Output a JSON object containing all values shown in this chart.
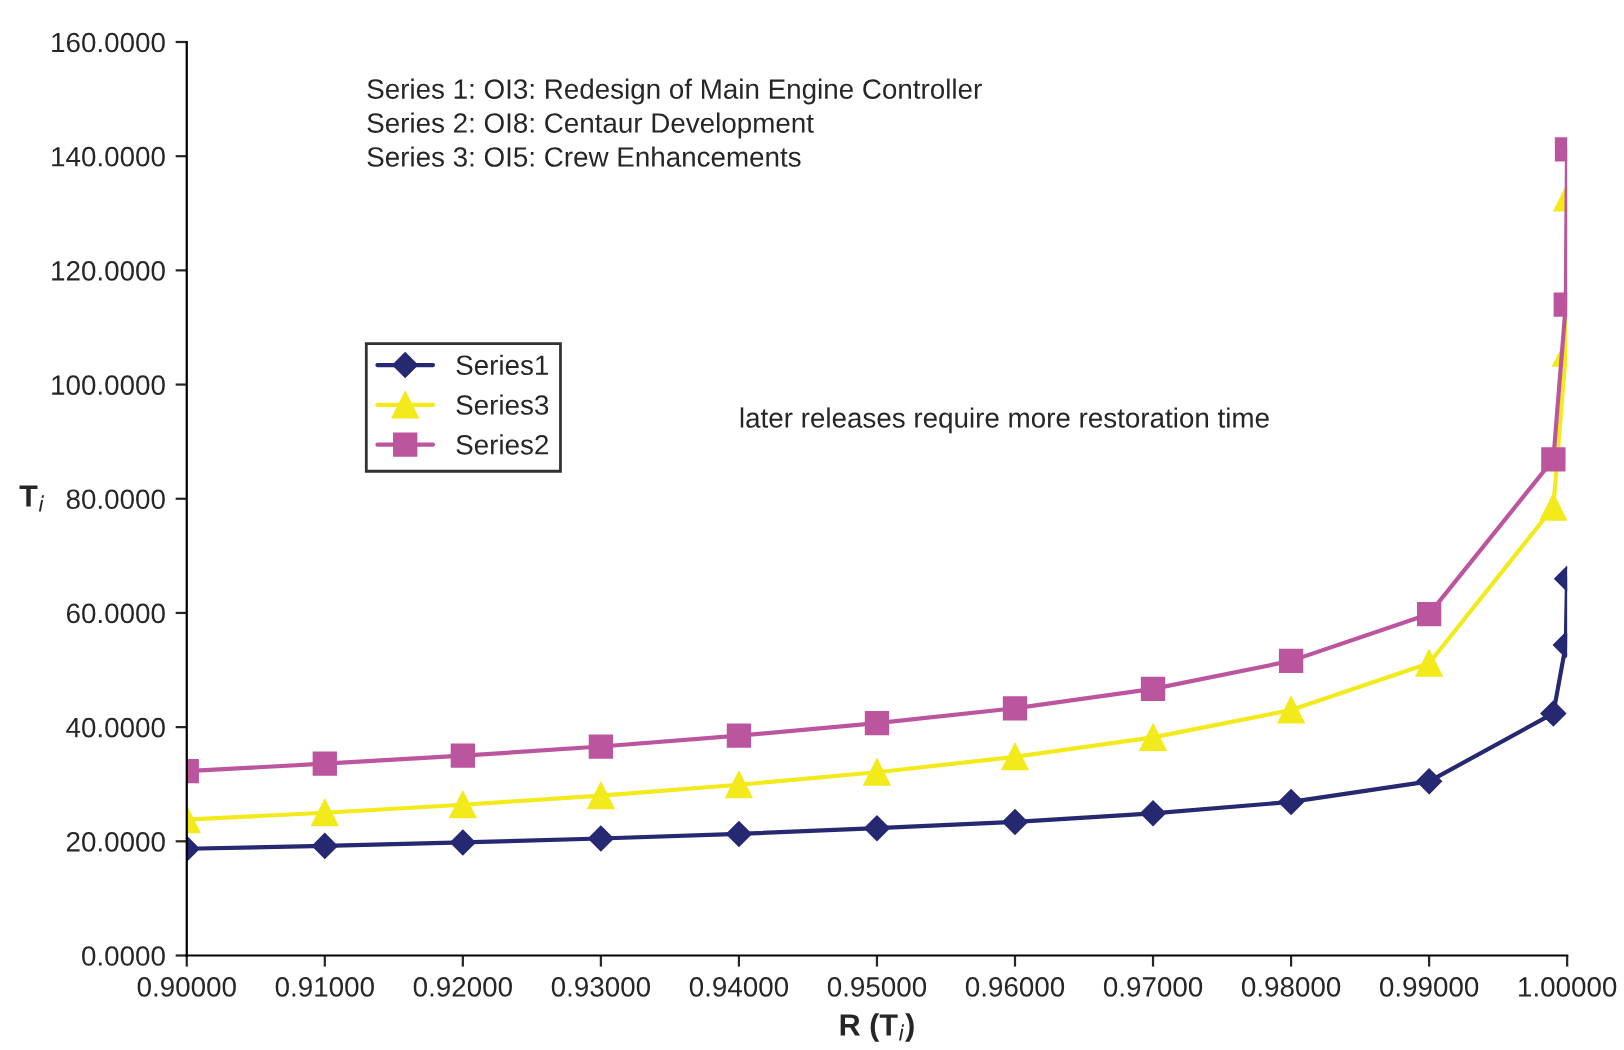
{
  "chart_data": {
    "type": "line",
    "xlabel": "R (T$_{i}$)",
    "ylabel": "T$_{i}$",
    "annotations": [
      "Series 1: OI3: Redesign of Main Engine Controller\nSeries 2: OI8: Centaur Development\nSeries 3: OI5: Crew Enhancements",
      "later releases require more restoration time"
    ],
    "x": [
      0.9,
      0.91,
      0.92,
      0.93,
      0.94,
      0.95,
      0.96,
      0.97,
      0.98,
      0.99,
      0.999,
      0.9999,
      0.99999
    ],
    "series": [
      {
        "name": "Series1",
        "color": "#262872",
        "marker": "diamond",
        "values": [
          18.7,
          19.2,
          19.8,
          20.5,
          21.3,
          22.3,
          23.4,
          24.9,
          26.9,
          30.5,
          42.4,
          54.4,
          66.0
        ]
      },
      {
        "name": "Series3",
        "color": "#f2ea1a",
        "marker": "triangle",
        "values": [
          23.8,
          25.0,
          26.4,
          28.0,
          29.9,
          32.1,
          34.8,
          38.2,
          43.0,
          51.2,
          78.5,
          105.5,
          132.7
        ]
      },
      {
        "name": "Series2",
        "color": "#bb559e",
        "marker": "square",
        "values": [
          32.3,
          33.6,
          35.0,
          36.6,
          38.5,
          40.7,
          43.3,
          46.7,
          51.6,
          59.8,
          86.9,
          114.0,
          141.2
        ]
      }
    ],
    "xlim": [
      0.9,
      1.0
    ],
    "ylim": [
      0,
      160
    ],
    "xticks": [
      {
        "value": 0.9,
        "label": "0.90000"
      },
      {
        "value": 0.91,
        "label": "0.91000"
      },
      {
        "value": 0.92,
        "label": "0.92000"
      },
      {
        "value": 0.93,
        "label": "0.93000"
      },
      {
        "value": 0.94,
        "label": "0.94000"
      },
      {
        "value": 0.95,
        "label": "0.95000"
      },
      {
        "value": 0.96,
        "label": "0.96000"
      },
      {
        "value": 0.97,
        "label": "0.97000"
      },
      {
        "value": 0.98,
        "label": "0.98000"
      },
      {
        "value": 0.99,
        "label": "0.99000"
      },
      {
        "value": 1.0,
        "label": "1.00000"
      }
    ],
    "yticks": [
      {
        "value": 0,
        "label": "0.0000"
      },
      {
        "value": 20,
        "label": "20.0000"
      },
      {
        "value": 40,
        "label": "40.0000"
      },
      {
        "value": 60,
        "label": "60.0000"
      },
      {
        "value": 80,
        "label": "80.0000"
      },
      {
        "value": 100,
        "label": "100.0000"
      },
      {
        "value": 120,
        "label": "120.0000"
      },
      {
        "value": 140,
        "label": "140.0000"
      },
      {
        "value": 160,
        "label": "160.0000"
      }
    ],
    "grid": false,
    "legend": "center left",
    "line_style": "solid"
  }
}
